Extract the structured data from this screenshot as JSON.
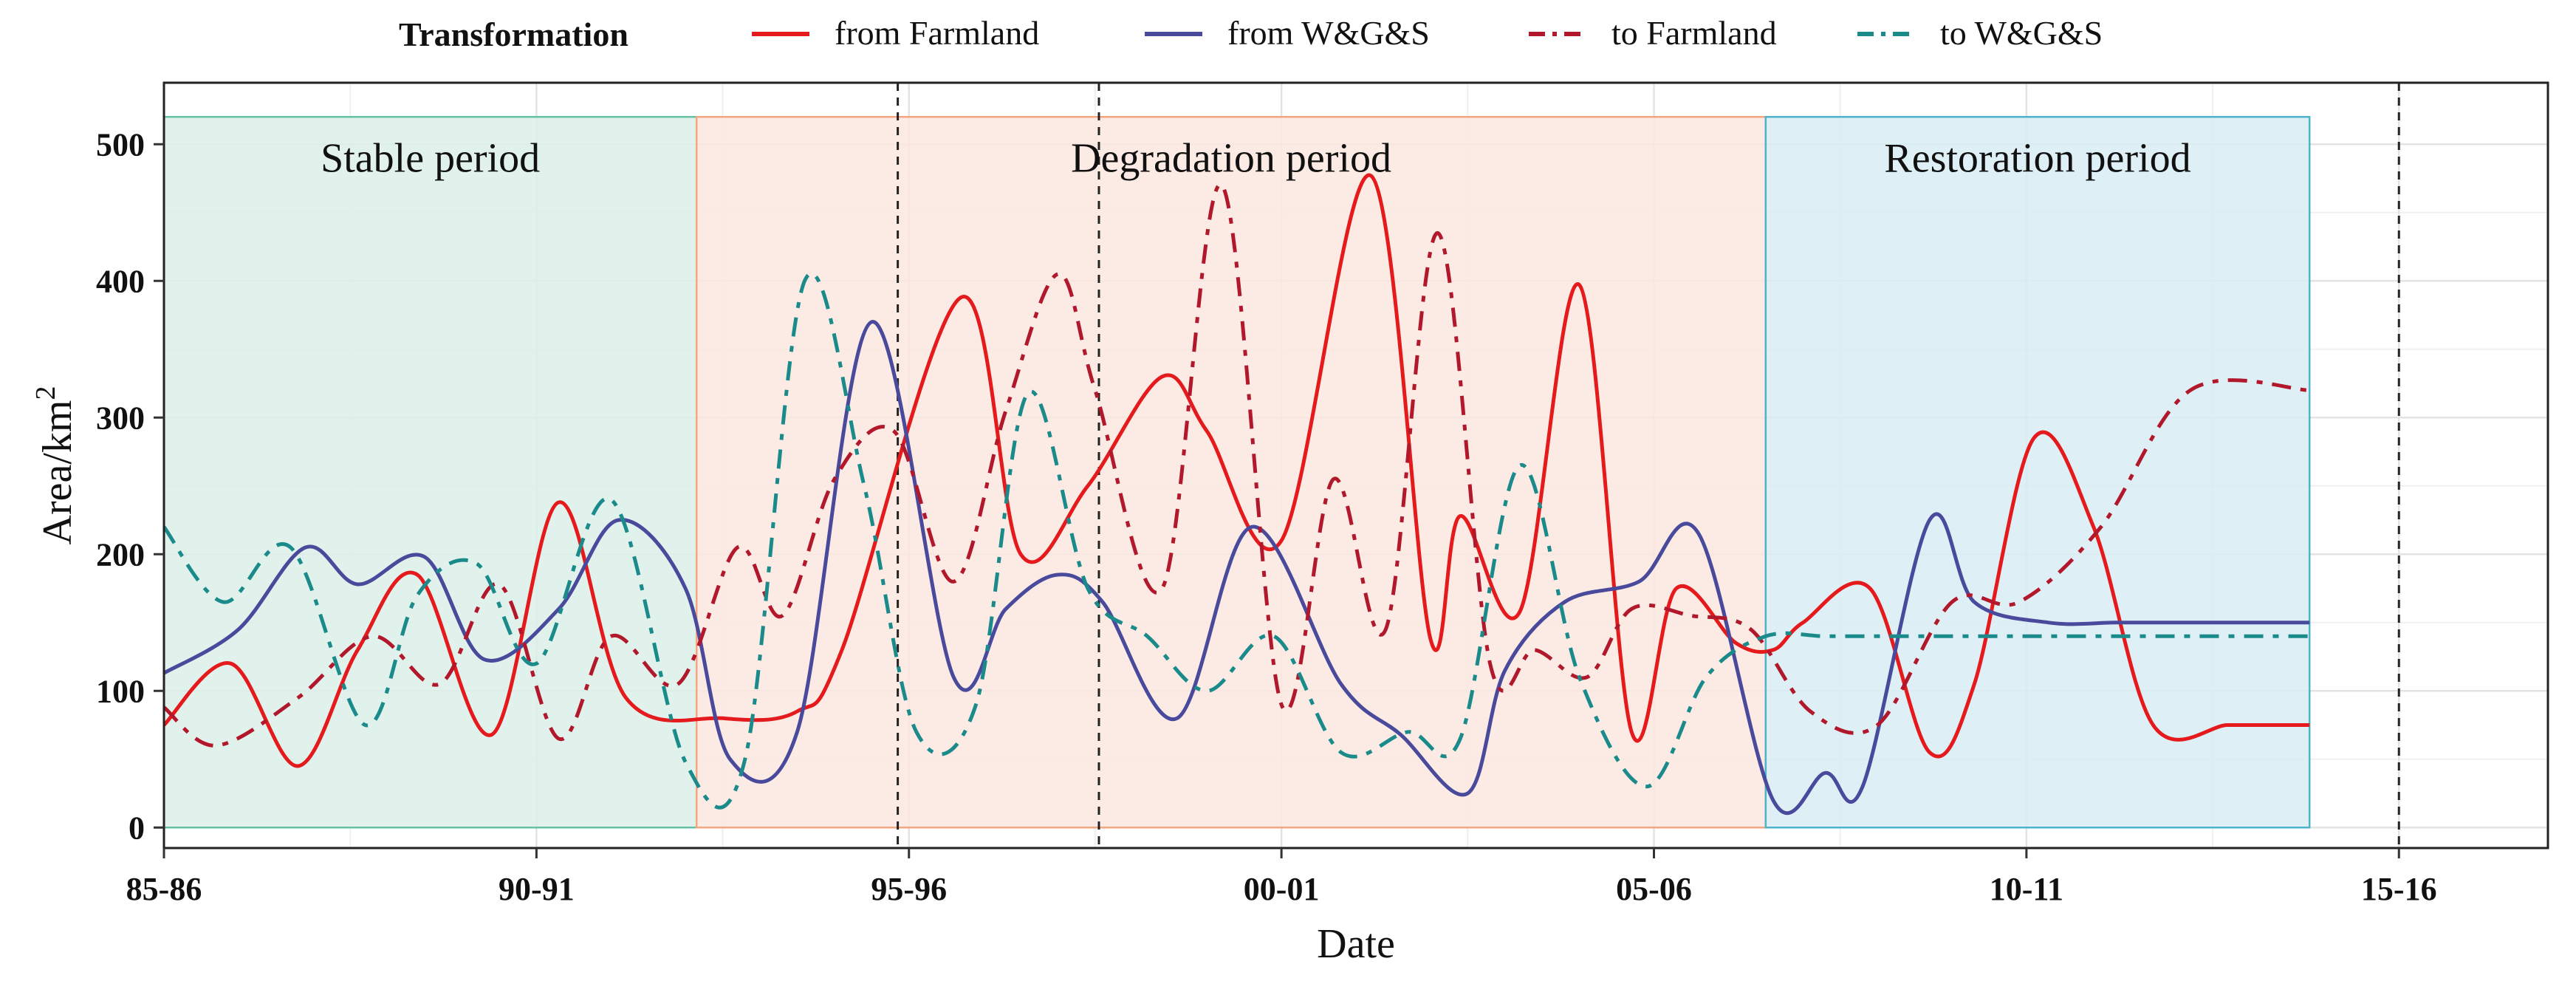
{
  "chart_data": {
    "type": "line",
    "title": "",
    "xlabel": "Date",
    "ylabel_base": "Area/km",
    "ylabel_sup": "2",
    "xlim": [
      0,
      32
    ],
    "ylim": [
      -15,
      545
    ],
    "x_ticks": [
      {
        "x": 0,
        "label": "85-86"
      },
      {
        "x": 5,
        "label": "90-91"
      },
      {
        "x": 10,
        "label": "95-96"
      },
      {
        "x": 15,
        "label": "00-01"
      },
      {
        "x": 20,
        "label": "05-06"
      },
      {
        "x": 25,
        "label": "10-11"
      },
      {
        "x": 30,
        "label": "15-16"
      }
    ],
    "y_ticks": [
      0,
      100,
      200,
      300,
      400,
      500
    ],
    "legend": {
      "title": "Transformation",
      "placement": "top"
    },
    "periods": [
      {
        "label": "Stable period",
        "x0": 0,
        "x1": 7.15,
        "y0": 0,
        "y1": 520,
        "fill": "#dcefe8",
        "stroke": "#66c2a5"
      },
      {
        "label": "Degradation period",
        "x0": 7.15,
        "x1": 21.5,
        "y0": 0,
        "y1": 520,
        "fill": "#fce7df",
        "stroke": "#f4a582"
      },
      {
        "label": "Restoration period",
        "x0": 21.5,
        "x1": 28.8,
        "y0": 0,
        "y1": 520,
        "fill": "#d8ecf4",
        "stroke": "#4fb3c9"
      }
    ],
    "vlines": [
      9.85,
      12.55,
      30
    ],
    "series": [
      {
        "name": "from Farmland",
        "color": "#e41a1c",
        "dash": "none",
        "x": [
          0,
          0.9,
          1.8,
          2.6,
          3.4,
          4.4,
          5.3,
          6.2,
          7.5,
          8.5,
          9.1,
          10.7,
          11.5,
          12.4,
          13.4,
          14.0,
          15.0,
          16.2,
          17.0,
          17.4,
          18.2,
          19.0,
          19.7,
          20.3,
          21.1,
          21.6,
          22.0,
          22.9,
          23.7,
          24.3,
          25.1,
          25.9,
          26.7,
          27.7,
          28.2,
          28.8
        ],
        "values": [
          75,
          120,
          45,
          130,
          185,
          68,
          238,
          95,
          80,
          85,
          130,
          388,
          200,
          250,
          330,
          290,
          210,
          477,
          138,
          228,
          158,
          397,
          70,
          175,
          135,
          130,
          150,
          175,
          55,
          105,
          285,
          220,
          75,
          75,
          75,
          75
        ]
      },
      {
        "name": "from W&G&S",
        "color": "#4a4a9c",
        "dash": "none",
        "x": [
          0,
          1.0,
          1.9,
          2.6,
          3.5,
          4.3,
          5.3,
          6.1,
          7.0,
          7.6,
          8.5,
          9.5,
          10.6,
          11.3,
          12.0,
          12.6,
          13.6,
          14.6,
          15.8,
          16.6,
          17.5,
          18.0,
          18.8,
          19.8,
          20.6,
          21.6,
          22.3,
          22.8,
          23.7,
          24.3,
          25.3,
          26.2,
          26.9,
          27.6,
          28.2,
          28.8
        ],
        "values": [
          113,
          145,
          205,
          178,
          198,
          123,
          160,
          225,
          175,
          50,
          70,
          370,
          110,
          160,
          185,
          165,
          80,
          220,
          105,
          68,
          25,
          115,
          165,
          180,
          215,
          20,
          40,
          30,
          225,
          165,
          150,
          150,
          150,
          150,
          150,
          150
        ]
      },
      {
        "name": "to Farmland",
        "color": "#b2182b",
        "dash": "26 13 8 13",
        "x": [
          0,
          0.7,
          1.8,
          2.8,
          3.7,
          4.5,
          5.3,
          6.0,
          6.9,
          7.7,
          8.3,
          9.0,
          9.8,
          10.6,
          11.3,
          12.0,
          12.5,
          13.4,
          14.2,
          15.0,
          15.7,
          16.4,
          17.1,
          17.8,
          18.4,
          19.1,
          19.7,
          20.5,
          21.3,
          22.1,
          23.0,
          24.0,
          24.9,
          26.0,
          27.2,
          28.8
        ],
        "values": [
          88,
          60,
          95,
          140,
          105,
          178,
          65,
          140,
          105,
          205,
          155,
          255,
          290,
          180,
          305,
          405,
          320,
          175,
          470,
          90,
          255,
          145,
          435,
          120,
          130,
          110,
          160,
          155,
          145,
          85,
          75,
          165,
          165,
          220,
          320,
          320
        ]
      },
      {
        "name": "to W&G&S",
        "color": "#1a8a8a",
        "dash": "26 13 8 13",
        "x": [
          0,
          0.8,
          1.7,
          2.7,
          3.4,
          4.2,
          5.0,
          6.0,
          7.0,
          7.8,
          8.6,
          9.4,
          10.1,
          10.9,
          11.6,
          12.4,
          13.2,
          14.0,
          14.9,
          15.8,
          16.7,
          17.4,
          18.2,
          19.0,
          19.9,
          20.7,
          21.5,
          22.3,
          23.2,
          24.0,
          24.9,
          25.7,
          26.6,
          27.4,
          28.2,
          28.8
        ],
        "values": [
          220,
          165,
          205,
          75,
          170,
          193,
          120,
          240,
          48,
          50,
          400,
          250,
          70,
          90,
          318,
          175,
          140,
          100,
          140,
          55,
          70,
          65,
          265,
          110,
          30,
          110,
          140,
          140,
          140,
          140,
          140,
          140,
          140,
          140,
          140,
          140
        ]
      }
    ]
  }
}
